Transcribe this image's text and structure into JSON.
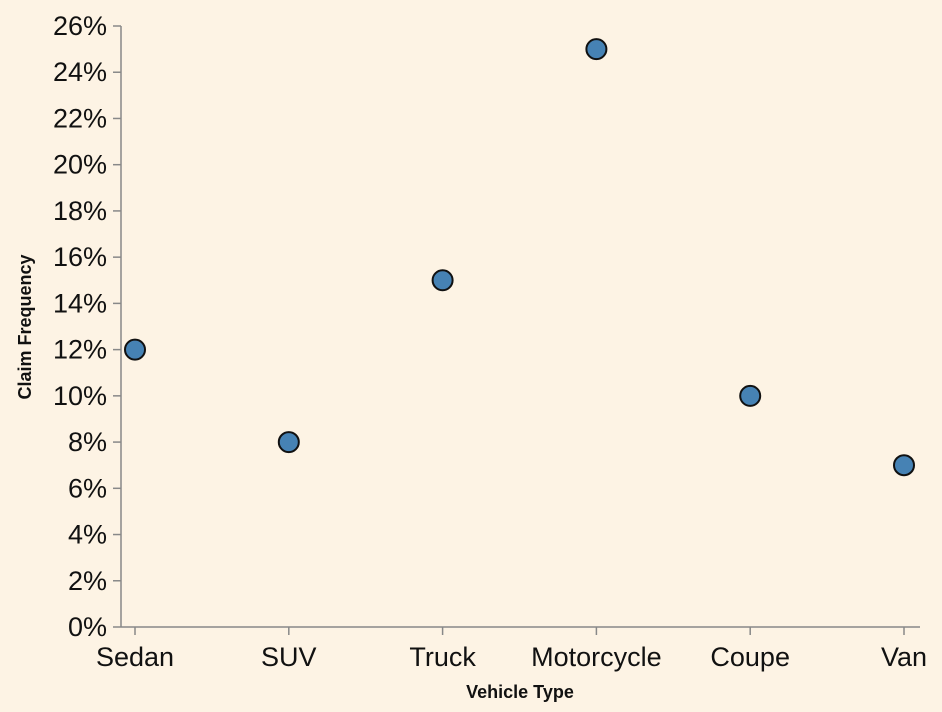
{
  "chart_data": {
    "type": "scatter",
    "title": "",
    "xlabel": "Vehicle Type",
    "ylabel": "Claim Frequency",
    "categories": [
      "Sedan",
      "SUV",
      "Truck",
      "Motorcycle",
      "Coupe",
      "Van"
    ],
    "values": [
      0.12,
      0.08,
      0.15,
      0.25,
      0.1,
      0.07
    ],
    "ylim": [
      0,
      0.26
    ],
    "yticks": [
      0,
      0.02,
      0.04,
      0.06,
      0.08,
      0.1,
      0.12,
      0.14,
      0.16,
      0.18,
      0.2,
      0.22,
      0.24,
      0.26
    ],
    "ytick_labels": [
      "0%",
      "2%",
      "4%",
      "6%",
      "8%",
      "10%",
      "12%",
      "14%",
      "16%",
      "18%",
      "20%",
      "22%",
      "24%",
      "26%"
    ],
    "grid": false,
    "legend": "none",
    "colors": {
      "point": "#4682b4",
      "background": "#fdf3e4"
    }
  }
}
